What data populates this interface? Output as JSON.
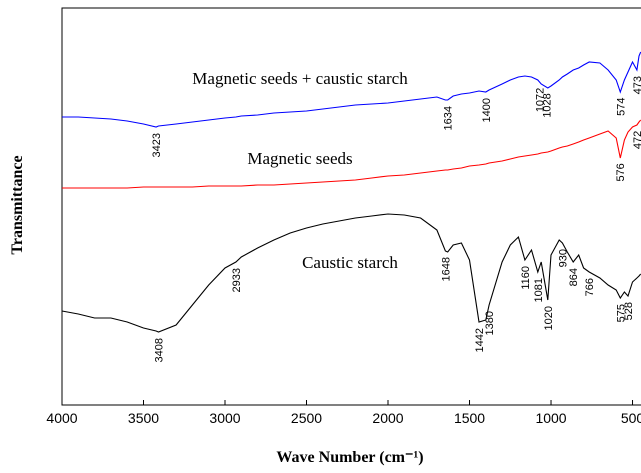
{
  "chart_data": {
    "type": "line",
    "x_label": "Wave Number (cm⁻¹)",
    "y_label": "Transmittance",
    "xlim": [
      4000,
      448
    ],
    "ylim": [
      0,
      397
    ],
    "xticks": [
      4000,
      3500,
      3000,
      2500,
      2000,
      1500,
      1000,
      500
    ],
    "x": [
      4000,
      3900,
      3800,
      3700,
      3600,
      3500,
      3423,
      3408,
      3300,
      3200,
      3100,
      3000,
      2933,
      2900,
      2800,
      2700,
      2600,
      2500,
      2400,
      2300,
      2200,
      2100,
      2000,
      1900,
      1800,
      1700,
      1648,
      1634,
      1600,
      1550,
      1500,
      1442,
      1400,
      1380,
      1300,
      1250,
      1200,
      1160,
      1120,
      1081,
      1060,
      1020,
      1000,
      950,
      930,
      900,
      864,
      830,
      800,
      766,
      700,
      650,
      600,
      575,
      550,
      528,
      500,
      473,
      460,
      450
    ],
    "series": [
      {
        "name": "Magnetic seeds + caustic starch",
        "color": "#0000ff",
        "values": [
          288,
          288,
          287,
          286,
          284,
          281,
          278,
          279,
          281,
          283,
          285,
          287,
          288,
          289,
          290,
          292,
          293,
          294,
          296,
          298,
          300,
          301,
          302,
          304,
          306,
          308,
          305,
          305,
          309,
          311,
          312,
          314,
          313,
          315,
          321,
          325,
          328,
          329,
          328,
          325,
          321,
          317,
          319,
          325,
          328,
          331,
          335,
          337,
          340,
          343,
          342,
          335,
          325,
          313,
          325,
          333,
          343,
          335,
          349,
          353
        ],
        "peak_labels": [
          "3423",
          "1634",
          "1400",
          "1072",
          "1028",
          "574",
          "473"
        ]
      },
      {
        "name": "Magnetic seeds",
        "color": "#ff0000",
        "values": [
          217,
          217,
          217,
          217,
          217,
          218,
          218,
          218,
          218,
          218,
          219,
          219,
          219,
          219,
          220,
          220,
          221,
          222,
          223,
          224,
          225,
          227,
          229,
          230,
          232,
          234,
          235,
          235,
          236,
          237,
          239,
          240,
          241,
          242,
          244,
          246,
          248,
          249,
          250,
          251,
          252,
          253,
          254,
          257,
          258,
          259,
          261,
          263,
          265,
          267,
          271,
          274,
          267,
          247,
          265,
          273,
          278,
          280,
          283,
          285
        ],
        "peak_labels": [
          "576",
          "472"
        ]
      },
      {
        "name": "Caustic starch",
        "color": "#000000",
        "values": [
          94,
          91,
          87,
          87,
          83,
          77,
          74,
          73,
          80,
          100,
          120,
          137,
          143,
          148,
          157,
          165,
          172,
          177,
          181,
          184,
          187,
          189,
          191,
          190,
          187,
          175,
          154,
          153,
          160,
          162,
          145,
          83,
          85,
          100,
          143,
          160,
          168,
          145,
          155,
          133,
          143,
          105,
          150,
          165,
          162,
          153,
          143,
          150,
          137,
          133,
          127,
          120,
          115,
          107,
          113,
          109,
          123,
          127,
          129,
          131
        ],
        "peak_labels": [
          "3408",
          "2933",
          "1648",
          "1442",
          "1380",
          "1160",
          "1081",
          "1020",
          "930",
          "864",
          "766",
          "575",
          "528"
        ]
      }
    ]
  }
}
